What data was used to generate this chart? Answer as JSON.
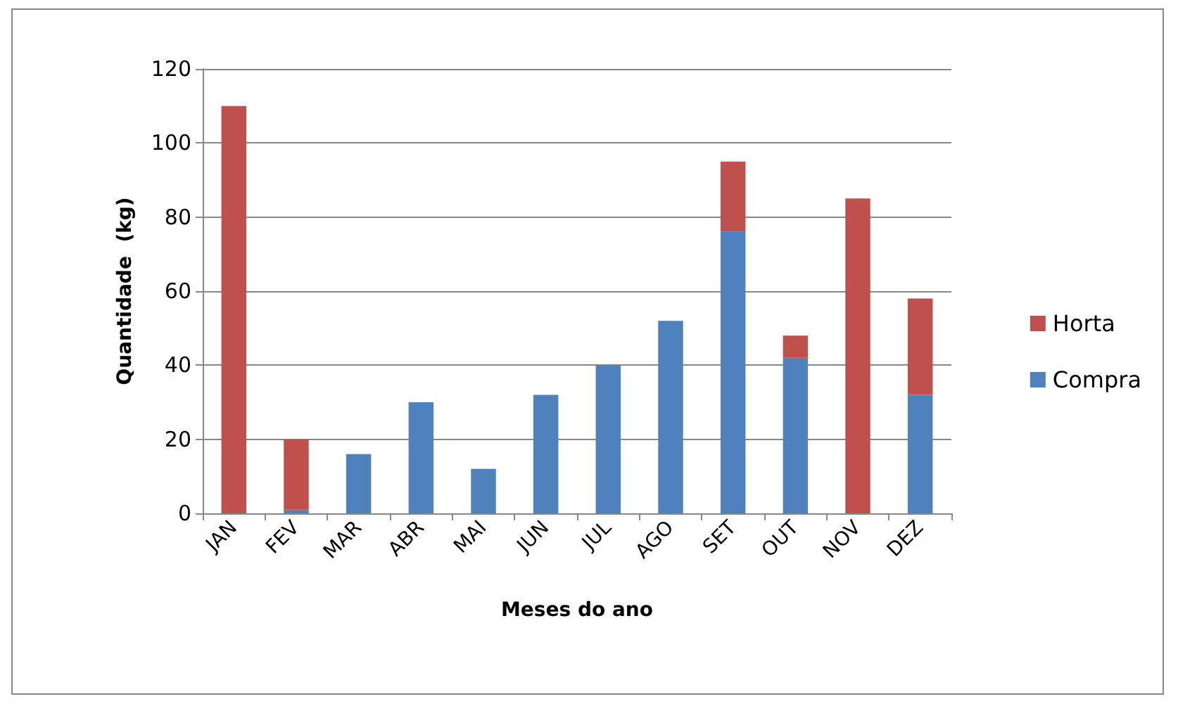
{
  "chart_data": {
    "type": "bar",
    "stacked": true,
    "xlabel": "Meses do ano",
    "ylabel": "Quantidade  (kg)",
    "categories": [
      "JAN",
      "FEV",
      "MAR",
      "ABR",
      "MAI",
      "JUN",
      "JUL",
      "AGO",
      "SET",
      "OUT",
      "NOV",
      "DEZ"
    ],
    "series": [
      {
        "name": "Compra",
        "color": "#4f81bd",
        "values": [
          0,
          1,
          16,
          30,
          12,
          32,
          40,
          52,
          76,
          42,
          0,
          32
        ]
      },
      {
        "name": "Horta",
        "color": "#c0504d",
        "values": [
          110,
          19,
          0,
          0,
          0,
          0,
          0,
          0,
          19,
          6,
          85,
          26
        ]
      }
    ],
    "ylim": [
      0,
      120
    ],
    "yticks": [
      0,
      20,
      40,
      60,
      80,
      100,
      120
    ],
    "grid": "y",
    "legend": "right"
  }
}
